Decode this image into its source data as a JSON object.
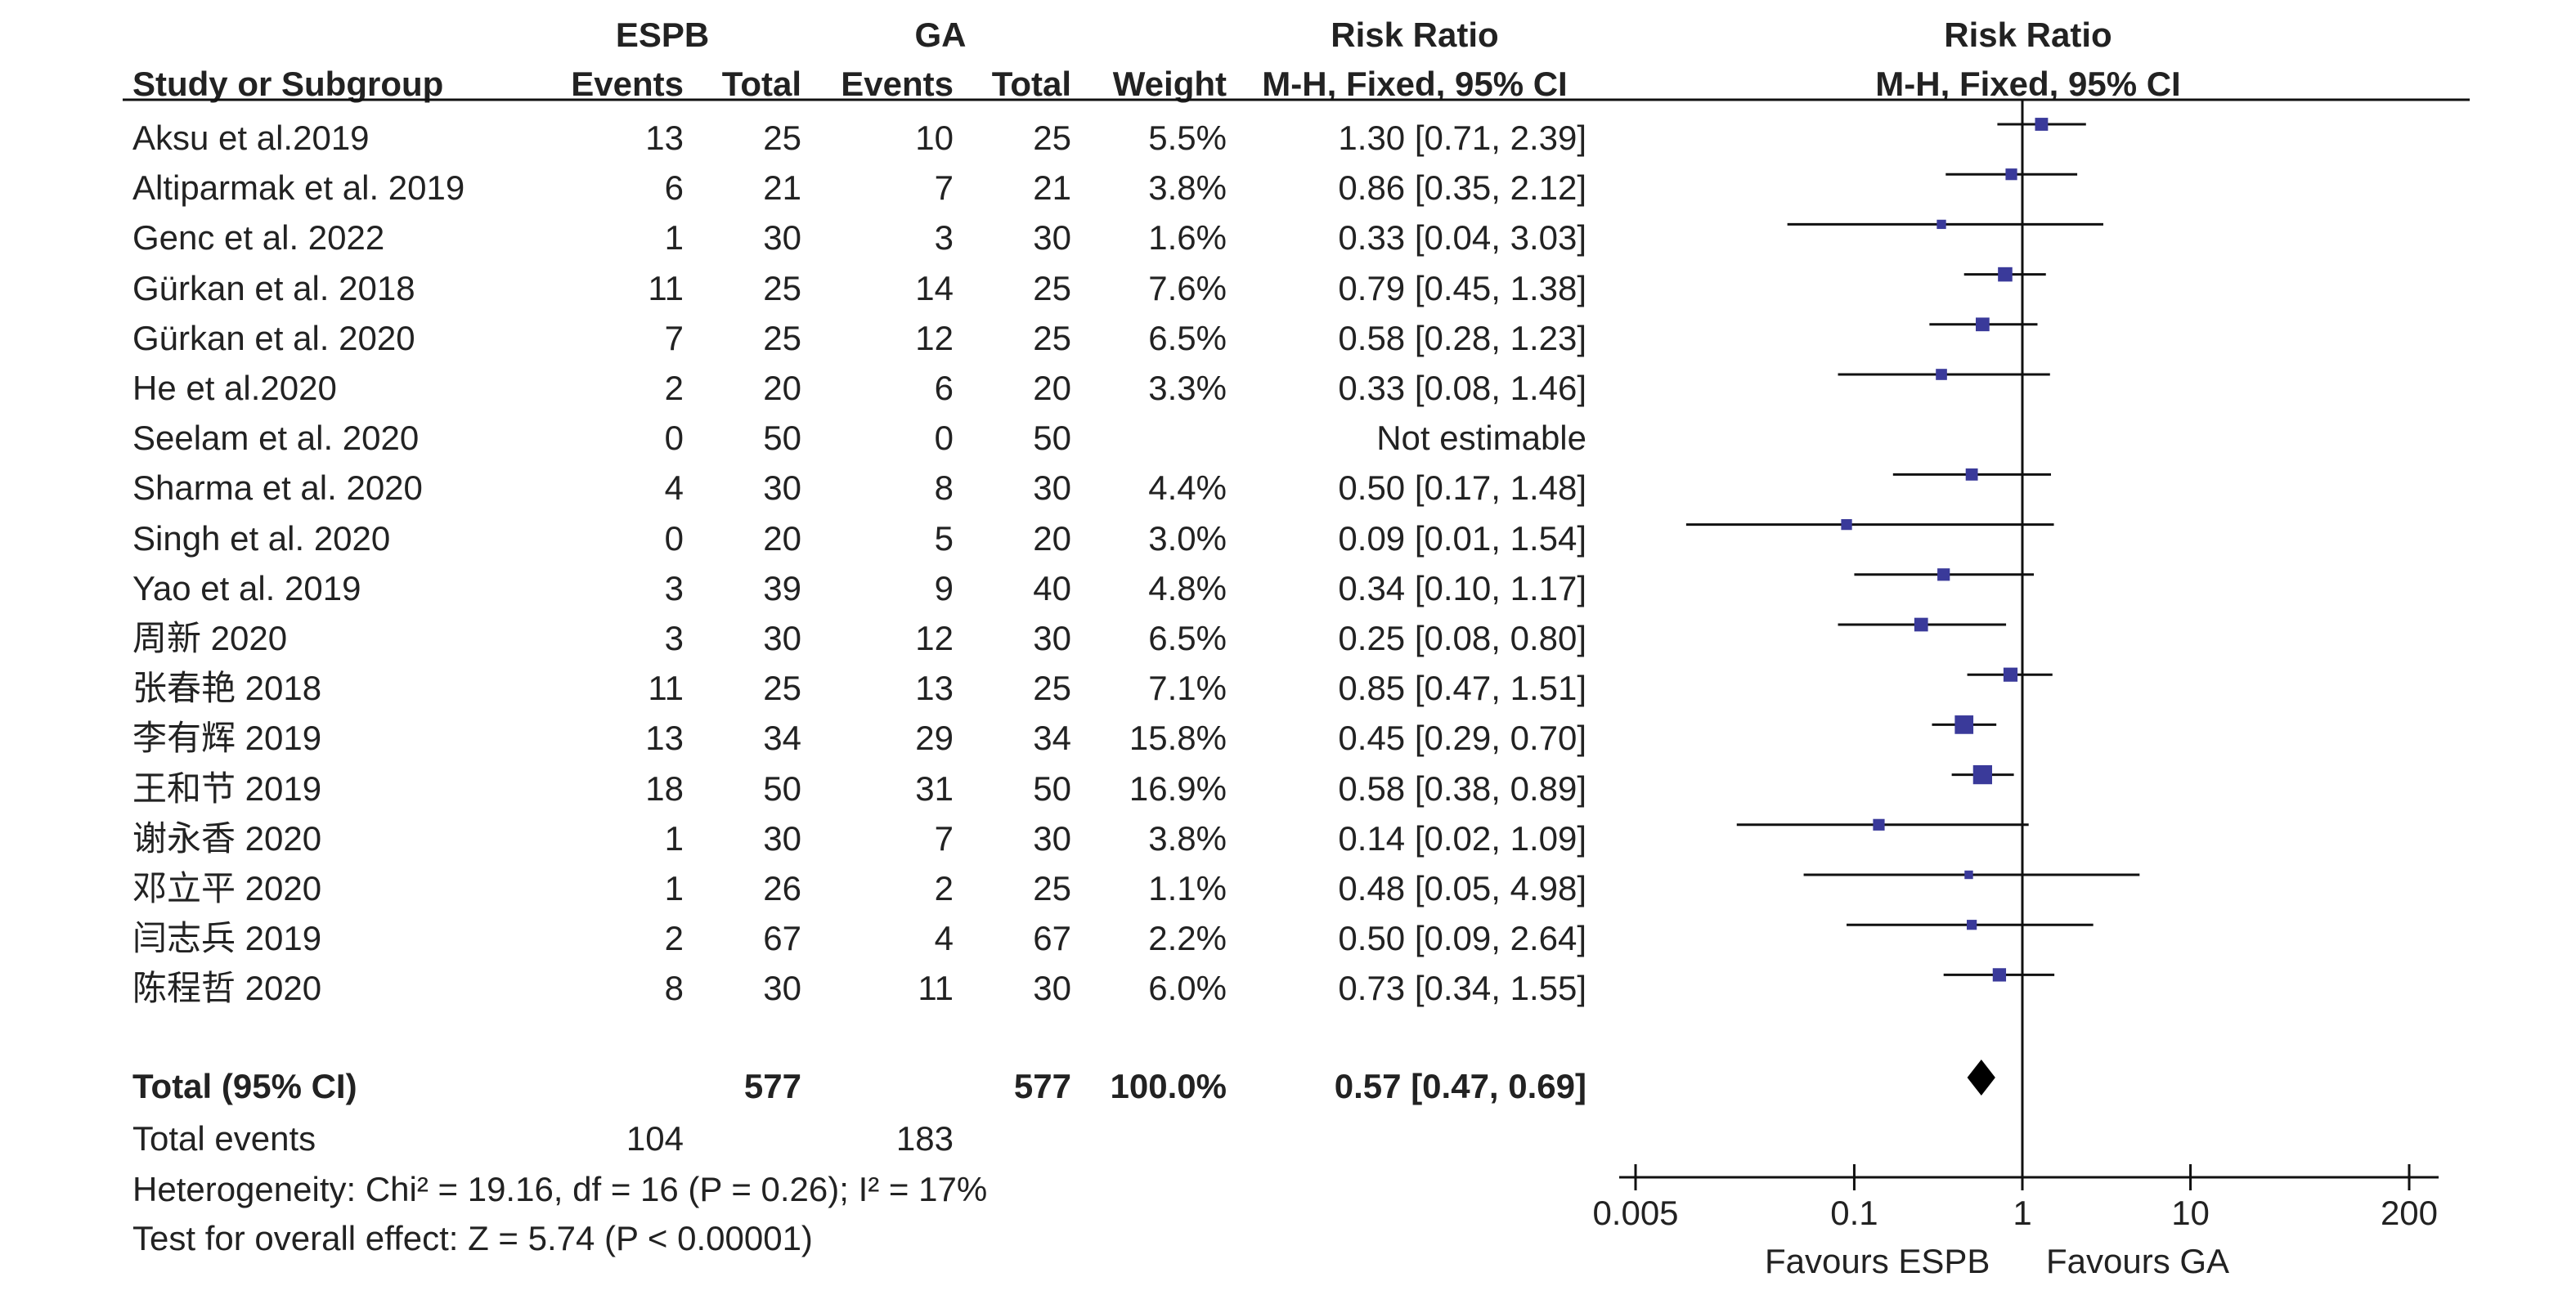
{
  "headers": {
    "group1": "ESPB",
    "group2": "GA",
    "study": "Study or Subgroup",
    "events": "Events",
    "total": "Total",
    "weight": "Weight",
    "rr": "Risk Ratio",
    "rr_method": "M-H, Fixed, 95% CI"
  },
  "rows": [
    {
      "study": "Aksu et al.2019",
      "e1": "13",
      "t1": "25",
      "e2": "10",
      "t2": "25",
      "weight": "5.5%",
      "ci": "1.30 [0.71, 2.39]"
    },
    {
      "study": "Altiparmak et al. 2019",
      "e1": "6",
      "t1": "21",
      "e2": "7",
      "t2": "21",
      "weight": "3.8%",
      "ci": "0.86 [0.35, 2.12]"
    },
    {
      "study": "Genc et al. 2022",
      "e1": "1",
      "t1": "30",
      "e2": "3",
      "t2": "30",
      "weight": "1.6%",
      "ci": "0.33 [0.04, 3.03]"
    },
    {
      "study": "Gürkan et al. 2018",
      "e1": "11",
      "t1": "25",
      "e2": "14",
      "t2": "25",
      "weight": "7.6%",
      "ci": "0.79 [0.45, 1.38]"
    },
    {
      "study": "Gürkan et al. 2020",
      "e1": "7",
      "t1": "25",
      "e2": "12",
      "t2": "25",
      "weight": "6.5%",
      "ci": "0.58 [0.28, 1.23]"
    },
    {
      "study": "He et al.2020",
      "e1": "2",
      "t1": "20",
      "e2": "6",
      "t2": "20",
      "weight": "3.3%",
      "ci": "0.33 [0.08, 1.46]"
    },
    {
      "study": "Seelam et al. 2020",
      "e1": "0",
      "t1": "50",
      "e2": "0",
      "t2": "50",
      "weight": "",
      "ci": "Not estimable"
    },
    {
      "study": "Sharma et al. 2020",
      "e1": "4",
      "t1": "30",
      "e2": "8",
      "t2": "30",
      "weight": "4.4%",
      "ci": "0.50 [0.17, 1.48]"
    },
    {
      "study": "Singh et al. 2020",
      "e1": "0",
      "t1": "20",
      "e2": "5",
      "t2": "20",
      "weight": "3.0%",
      "ci": "0.09 [0.01, 1.54]"
    },
    {
      "study": "Yao et al. 2019",
      "e1": "3",
      "t1": "39",
      "e2": "9",
      "t2": "40",
      "weight": "4.8%",
      "ci": "0.34 [0.10, 1.17]"
    },
    {
      "study": "周新 2020",
      "e1": "3",
      "t1": "30",
      "e2": "12",
      "t2": "30",
      "weight": "6.5%",
      "ci": "0.25 [0.08, 0.80]"
    },
    {
      "study": "张春艳 2018",
      "e1": "11",
      "t1": "25",
      "e2": "13",
      "t2": "25",
      "weight": "7.1%",
      "ci": "0.85 [0.47, 1.51]"
    },
    {
      "study": "李有辉 2019",
      "e1": "13",
      "t1": "34",
      "e2": "29",
      "t2": "34",
      "weight": "15.8%",
      "ci": "0.45 [0.29, 0.70]"
    },
    {
      "study": "王和节 2019",
      "e1": "18",
      "t1": "50",
      "e2": "31",
      "t2": "50",
      "weight": "16.9%",
      "ci": "0.58 [0.38, 0.89]"
    },
    {
      "study": "谢永香 2020",
      "e1": "1",
      "t1": "30",
      "e2": "7",
      "t2": "30",
      "weight": "3.8%",
      "ci": "0.14 [0.02, 1.09]"
    },
    {
      "study": "邓立平 2020",
      "e1": "1",
      "t1": "26",
      "e2": "2",
      "t2": "25",
      "weight": "1.1%",
      "ci": "0.48 [0.05, 4.98]"
    },
    {
      "study": "闫志兵 2019",
      "e1": "2",
      "t1": "67",
      "e2": "4",
      "t2": "67",
      "weight": "2.2%",
      "ci": "0.50 [0.09, 2.64]"
    },
    {
      "study": "陈程哲 2020",
      "e1": "8",
      "t1": "30",
      "e2": "11",
      "t2": "30",
      "weight": "6.0%",
      "ci": "0.73 [0.34, 1.55]"
    }
  ],
  "total": {
    "label": "Total (95% CI)",
    "t1": "577",
    "t2": "577",
    "weight": "100.0%",
    "ci": "0.57 [0.47, 0.69]"
  },
  "total_events": {
    "label": "Total events",
    "e1": "104",
    "e2": "183"
  },
  "heterogeneity": "Heterogeneity: Chi² = 19.16, df = 16 (P = 0.26); I² = 17%",
  "overall_effect": "Test for overall effect: Z = 5.74 (P < 0.00001)",
  "favours_left": "Favours ESPB",
  "favours_right": "Favours GA",
  "colors": {
    "marker": "#3a3a9a",
    "line": "#111111",
    "text": "#222222"
  },
  "chart_data": {
    "type": "forest",
    "scale": "log",
    "xlim": [
      0.005,
      200
    ],
    "x_ticks": [
      0.005,
      0.1,
      1,
      10,
      200
    ],
    "x_tick_labels": [
      "0.005",
      "0.1",
      "1",
      "10",
      "200"
    ],
    "reference_line": 1,
    "studies": [
      {
        "name": "Aksu et al.2019",
        "rr": 1.3,
        "lo": 0.71,
        "hi": 2.39,
        "weight": 5.5
      },
      {
        "name": "Altiparmak et al. 2019",
        "rr": 0.86,
        "lo": 0.35,
        "hi": 2.12,
        "weight": 3.8
      },
      {
        "name": "Genc et al. 2022",
        "rr": 0.33,
        "lo": 0.04,
        "hi": 3.03,
        "weight": 1.6
      },
      {
        "name": "Gürkan et al. 2018",
        "rr": 0.79,
        "lo": 0.45,
        "hi": 1.38,
        "weight": 7.6
      },
      {
        "name": "Gürkan et al. 2020",
        "rr": 0.58,
        "lo": 0.28,
        "hi": 1.23,
        "weight": 6.5
      },
      {
        "name": "He et al.2020",
        "rr": 0.33,
        "lo": 0.08,
        "hi": 1.46,
        "weight": 3.3
      },
      {
        "name": "Seelam et al. 2020",
        "rr": null,
        "lo": null,
        "hi": null,
        "weight": null
      },
      {
        "name": "Sharma et al. 2020",
        "rr": 0.5,
        "lo": 0.17,
        "hi": 1.48,
        "weight": 4.4
      },
      {
        "name": "Singh et al. 2020",
        "rr": 0.09,
        "lo": 0.01,
        "hi": 1.54,
        "weight": 3.0
      },
      {
        "name": "Yao et al. 2019",
        "rr": 0.34,
        "lo": 0.1,
        "hi": 1.17,
        "weight": 4.8
      },
      {
        "name": "周新 2020",
        "rr": 0.25,
        "lo": 0.08,
        "hi": 0.8,
        "weight": 6.5
      },
      {
        "name": "张春艳 2018",
        "rr": 0.85,
        "lo": 0.47,
        "hi": 1.51,
        "weight": 7.1
      },
      {
        "name": "李有辉 2019",
        "rr": 0.45,
        "lo": 0.29,
        "hi": 0.7,
        "weight": 15.8
      },
      {
        "name": "王和节 2019",
        "rr": 0.58,
        "lo": 0.38,
        "hi": 0.89,
        "weight": 16.9
      },
      {
        "name": "谢永香 2020",
        "rr": 0.14,
        "lo": 0.02,
        "hi": 1.09,
        "weight": 3.8
      },
      {
        "name": "邓立平 2020",
        "rr": 0.48,
        "lo": 0.05,
        "hi": 4.98,
        "weight": 1.1
      },
      {
        "name": "闫志兵 2019",
        "rr": 0.5,
        "lo": 0.09,
        "hi": 2.64,
        "weight": 2.2
      },
      {
        "name": "陈程哲 2020",
        "rr": 0.73,
        "lo": 0.34,
        "hi": 1.55,
        "weight": 6.0
      }
    ],
    "pooled": {
      "rr": 0.57,
      "lo": 0.47,
      "hi": 0.69
    }
  }
}
